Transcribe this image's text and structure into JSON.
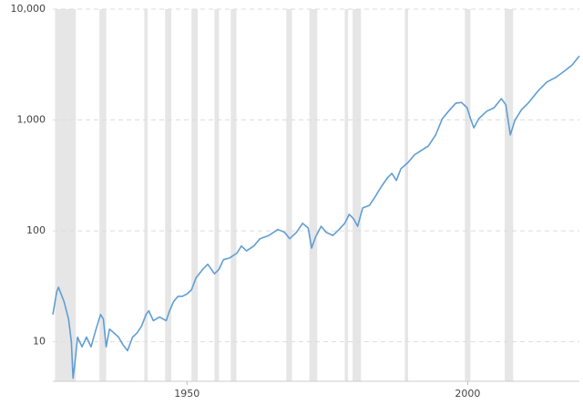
{
  "chart_data": {
    "type": "line",
    "log_y": true,
    "grid": true,
    "color": "#5f9ed4",
    "band_color": "#e6e6e6",
    "x": [
      1926.1,
      1926.8,
      1927.1,
      1928.1,
      1928.9,
      1929.4,
      1929.7,
      1930.0,
      1930.5,
      1931.3,
      1932.1,
      1932.9,
      1933.8,
      1934.6,
      1935.1,
      1935.6,
      1936.2,
      1937.0,
      1937.8,
      1938.6,
      1939.4,
      1940.3,
      1941.1,
      1941.9,
      1942.7,
      1943.2,
      1944.0,
      1945.1,
      1946.3,
      1946.9,
      1947.6,
      1948.4,
      1949.2,
      1950.0,
      1950.8,
      1951.6,
      1952.8,
      1953.7,
      1954.9,
      1955.7,
      1956.5,
      1957.6,
      1958.9,
      1959.7,
      1960.6,
      1961.9,
      1963.0,
      1964.6,
      1966.2,
      1967.4,
      1968.3,
      1969.5,
      1970.6,
      1971.6,
      1972.2,
      1972.9,
      1973.9,
      1974.8,
      1976.0,
      1977.1,
      1978.1,
      1978.9,
      1979.7,
      1980.4,
      1981.3,
      1982.5,
      1983.6,
      1984.6,
      1985.7,
      1986.5,
      1987.3,
      1988.1,
      1989.4,
      1990.5,
      1991.7,
      1993.0,
      1994.3,
      1995.5,
      1996.6,
      1997.9,
      1998.9,
      1999.9,
      2000.5,
      2001.1,
      2002.0,
      2003.4,
      2004.7,
      2006.0,
      2006.8,
      2007.6,
      2008.4,
      2009.6,
      2010.9,
      2012.5,
      2014.1,
      2015.7,
      2017.3,
      2018.6,
      2019.9
    ],
    "values": [
      17.6,
      28.3,
      31,
      23,
      16,
      10,
      4.7,
      6.2,
      11,
      9,
      11,
      9,
      13,
      17.6,
      16,
      9,
      13,
      12,
      11,
      9.4,
      8.3,
      11,
      12,
      13.8,
      17.6,
      19,
      15.5,
      16.7,
      15.5,
      19,
      23,
      25.7,
      25.7,
      27,
      29.4,
      37.6,
      45,
      50,
      41,
      45,
      55,
      57,
      63,
      73,
      66,
      73,
      85,
      91,
      103,
      97,
      85,
      97,
      117,
      106,
      70,
      88,
      110,
      97,
      91,
      103,
      117,
      141,
      128,
      110,
      161,
      170,
      206,
      250,
      300,
      330,
      285,
      363,
      415,
      484,
      530,
      583,
      734,
      1030,
      1200,
      1420,
      1440,
      1290,
      1030,
      850,
      1030,
      1200,
      1290,
      1560,
      1370,
      734,
      990,
      1240,
      1440,
      1820,
      2200,
      2420,
      2780,
      3130,
      3780
    ],
    "shaded_ranges": [
      [
        1926.5,
        1930.2
      ],
      [
        1934.4,
        1935.6
      ],
      [
        1942.4,
        1943.0
      ],
      [
        1946.1,
        1947.2
      ],
      [
        1950.8,
        1951.9
      ],
      [
        1954.9,
        1955.7
      ],
      [
        1957.8,
        1958.8
      ],
      [
        1967.7,
        1968.7
      ],
      [
        1971.8,
        1973.2
      ],
      [
        1978.1,
        1978.7
      ],
      [
        1979.5,
        1981.0
      ],
      [
        1988.8,
        1989.4
      ],
      [
        1999.5,
        2000.5
      ],
      [
        2006.6,
        2008.1
      ]
    ],
    "xlim": [
      1926.1,
      2019.9
    ],
    "xticks": [
      1950,
      2000
    ],
    "ylim": [
      4.4,
      10000
    ],
    "yticks": [
      {
        "value": 10000,
        "label": "10,000"
      },
      {
        "value": 1000,
        "label": "1,000"
      },
      100,
      10
    ]
  }
}
